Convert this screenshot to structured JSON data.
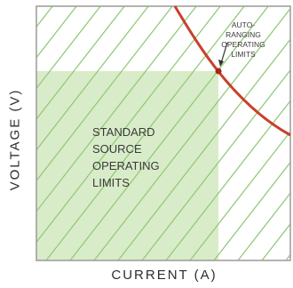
{
  "axes": {
    "y_label": "VOLTAGE (V)",
    "x_label": "CURRENT (A)"
  },
  "regions": {
    "standard": {
      "lines": [
        "STANDARD",
        "SOURCE",
        "OPERATING",
        "LIMITS"
      ],
      "fill_color": "#d9ecc9",
      "hatch_color": "#95c97b"
    },
    "auto_ranging": {
      "lines": [
        "AUTO-",
        "RANGING",
        "OPERATING",
        "LIMITS"
      ],
      "curve_color": "#c8412b",
      "marker_color": "#a6251c"
    }
  },
  "frame_color": "#9a9a9a"
}
